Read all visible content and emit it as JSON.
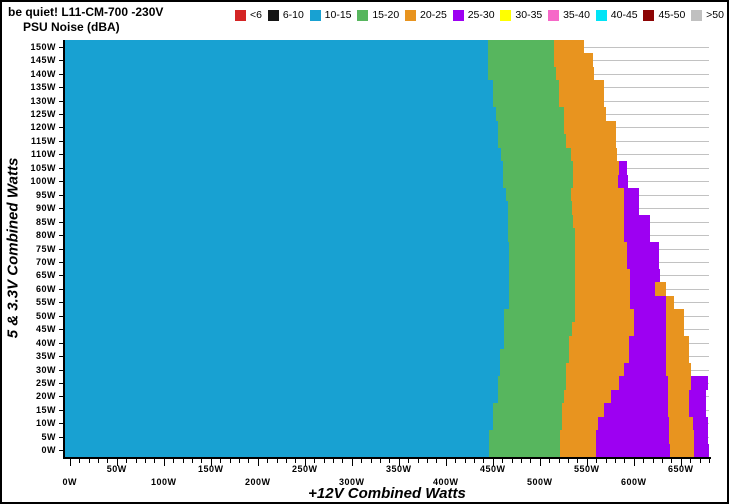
{
  "header": {
    "title_line1": "be quiet! L11-CM-700 -230V",
    "title_line2": "PSU Noise (dBA)"
  },
  "chart_data": {
    "type": "heatmap",
    "title": "be quiet! L11-CM-700 -230V",
    "subtitle": "PSU Noise (dBA)",
    "xlabel": "+12V Combined Watts",
    "ylabel": "5 & 3.3V Combined Watts",
    "x_domain": [
      -5,
      680
    ],
    "x_major_tick_step": 50,
    "x_minor_tick_step": 10,
    "x_max_labeled_tick": 650,
    "grid": "horizontal-only",
    "legend": {
      "position": "top",
      "entries": [
        {
          "label": "<6",
          "color": "#d42525"
        },
        {
          "label": "6-10",
          "color": "#151515"
        },
        {
          "label": "10-15",
          "color": "#18a1d2"
        },
        {
          "label": "15-20",
          "color": "#57b65e"
        },
        {
          "label": "20-25",
          "color": "#e8941f"
        },
        {
          "label": "25-30",
          "color": "#9d00f2"
        },
        {
          "label": "30-35",
          "color": "#ffff00"
        },
        {
          "label": "35-40",
          "color": "#f668c8"
        },
        {
          "label": "40-45",
          "color": "#00e4f6"
        },
        {
          "label": "45-50",
          "color": "#8c0404"
        },
        {
          "label": ">50",
          "color": "#c0c0c0"
        }
      ]
    },
    "band_sequence": [
      "10-15",
      "15-20",
      "20-25",
      "25-30",
      "20-25",
      "25-30"
    ],
    "rows_note": "rows top-to-bottom; bounds = cumulative +12V watt boundaries of noise bands starting at x_domain min",
    "rows": [
      {
        "y": "150W",
        "bounds": [
          445,
          515,
          547
        ]
      },
      {
        "y": "145W",
        "bounds": [
          445,
          515,
          557
        ]
      },
      {
        "y": "140W",
        "bounds": [
          445,
          517,
          558
        ]
      },
      {
        "y": "135W",
        "bounds": [
          450,
          520,
          568
        ]
      },
      {
        "y": "130W",
        "bounds": [
          450,
          520,
          568
        ]
      },
      {
        "y": "125W",
        "bounds": [
          453,
          526,
          570
        ]
      },
      {
        "y": "120W",
        "bounds": [
          456,
          526,
          581
        ]
      },
      {
        "y": "115W",
        "bounds": [
          456,
          528,
          581
        ]
      },
      {
        "y": "110W",
        "bounds": [
          459,
          533,
          582
        ]
      },
      {
        "y": "105W",
        "bounds": [
          461,
          535,
          584,
          593
        ]
      },
      {
        "y": "100W",
        "bounds": [
          461,
          535,
          583,
          594
        ]
      },
      {
        "y": "95W",
        "bounds": [
          464,
          533,
          590,
          606
        ]
      },
      {
        "y": "90W",
        "bounds": [
          466,
          534,
          590,
          606
        ]
      },
      {
        "y": "85W",
        "bounds": [
          466,
          535,
          590,
          617
        ]
      },
      {
        "y": "80W",
        "bounds": [
          466,
          537,
          590,
          617
        ]
      },
      {
        "y": "75W",
        "bounds": [
          467,
          537,
          593,
          627
        ]
      },
      {
        "y": "70W",
        "bounds": [
          467,
          537,
          593,
          627
        ]
      },
      {
        "y": "65W",
        "bounds": [
          467,
          537,
          596,
          628
        ]
      },
      {
        "y": "60W",
        "bounds": [
          467,
          537,
          596,
          623,
          634
        ]
      },
      {
        "y": "55W",
        "bounds": [
          467,
          537,
          596,
          634,
          643
        ]
      },
      {
        "y": "50W",
        "bounds": [
          462,
          537,
          600,
          634,
          653
        ]
      },
      {
        "y": "45W",
        "bounds": [
          462,
          534,
          600,
          634,
          653
        ]
      },
      {
        "y": "40W",
        "bounds": [
          462,
          531,
          595,
          634,
          659
        ]
      },
      {
        "y": "35W",
        "bounds": [
          458,
          531,
          595,
          634,
          659
        ]
      },
      {
        "y": "30W",
        "bounds": [
          458,
          528,
          590,
          634,
          661
        ]
      },
      {
        "y": "25W",
        "bounds": [
          456,
          528,
          584,
          636,
          661,
          679
        ]
      },
      {
        "y": "20W",
        "bounds": [
          456,
          526,
          576,
          636,
          659,
          677
        ]
      },
      {
        "y": "15W",
        "bounds": [
          450,
          524,
          568,
          636,
          659,
          677
        ]
      },
      {
        "y": "10W",
        "bounds": [
          450,
          524,
          562,
          637,
          663,
          679
        ]
      },
      {
        "y": "5W",
        "bounds": [
          446,
          521,
          560,
          637,
          664,
          679
        ]
      },
      {
        "y": "0W",
        "bounds": [
          446,
          521,
          560,
          639,
          664,
          680
        ]
      }
    ]
  }
}
